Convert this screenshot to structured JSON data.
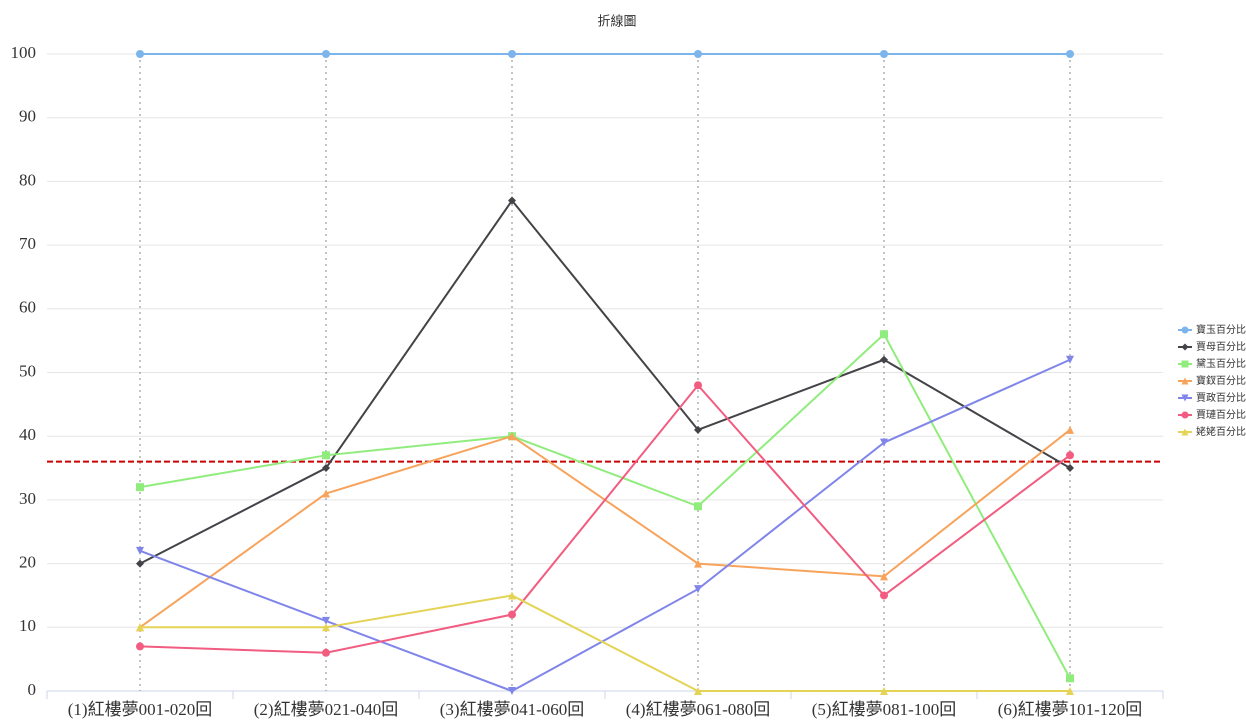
{
  "chart_data": {
    "type": "line",
    "title": "折線圖",
    "categories": [
      "(1)紅樓夢001-020回",
      "(2)紅樓夢021-040回",
      "(3)紅樓夢041-060回",
      "(4)紅樓夢061-080回",
      "(5)紅樓夢081-100回",
      "(6)紅樓夢101-120回"
    ],
    "series": [
      {
        "name": "寶玉百分比",
        "color": "#7cb5ec",
        "values": [
          100,
          100,
          100,
          100,
          100,
          100
        ]
      },
      {
        "name": "賈母百分比",
        "color": "#434348",
        "values": [
          20,
          35,
          77,
          41,
          52,
          35
        ]
      },
      {
        "name": "黛玉百分比",
        "color": "#90ed7d",
        "values": [
          32,
          37,
          40,
          29,
          56,
          2
        ]
      },
      {
        "name": "寶釵百分比",
        "color": "#f7a35c",
        "values": [
          10,
          31,
          40,
          20,
          18,
          41
        ]
      },
      {
        "name": "賈政百分比",
        "color": "#8085e9",
        "values": [
          22,
          11,
          0,
          16,
          39,
          52
        ]
      },
      {
        "name": "賈璉百分比",
        "color": "#f15c80",
        "values": [
          7,
          6,
          12,
          48,
          15,
          37
        ]
      },
      {
        "name": "姥姥百分比",
        "color": "#e4d354",
        "values": [
          10,
          10,
          15,
          0,
          0,
          0
        ]
      }
    ],
    "reference_line": {
      "value": 36,
      "color": "#cc0000"
    },
    "ylim": [
      0,
      100
    ],
    "yticks": [
      0,
      10,
      20,
      30,
      40,
      50,
      60,
      70,
      80,
      90,
      100
    ],
    "grid": true,
    "legend": "right"
  }
}
